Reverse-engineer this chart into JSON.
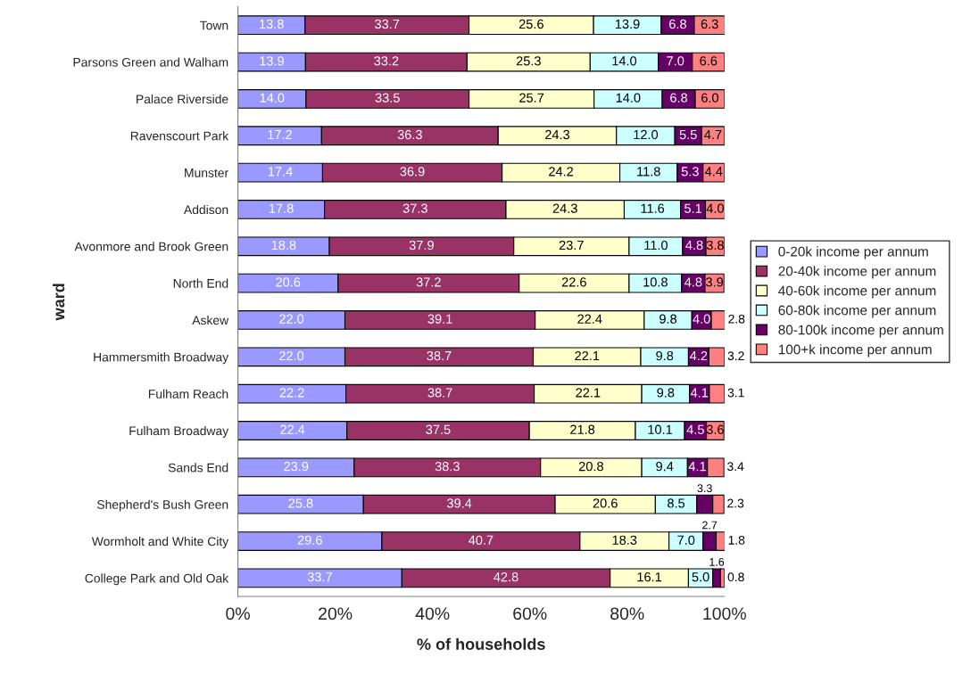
{
  "chart_data": {
    "type": "bar",
    "orientation": "horizontal",
    "stacked": true,
    "xlabel": "% of households",
    "ylabel": "ward",
    "categories": [
      "Town",
      "Parsons Green and Walham",
      "Palace Riverside",
      "Ravenscourt Park",
      "Munster",
      "Addison",
      "Avonmore and Brook Green",
      "North End",
      "Askew",
      "Hammersmith Broadway",
      "Fulham Reach",
      "Fulham Broadway",
      "Sands End",
      "Shepherd's Bush Green",
      "Wormholt and White City",
      "College Park and Old Oak"
    ],
    "series": [
      {
        "name": "0-20k income per annum",
        "color": "#9999ff",
        "values": [
          13.8,
          13.9,
          14.0,
          17.2,
          17.4,
          17.8,
          18.8,
          20.6,
          22.0,
          22.0,
          22.2,
          22.4,
          23.9,
          25.8,
          29.6,
          33.7
        ],
        "value_labels": [
          "13.8",
          "13.9",
          "14.0",
          "17.2",
          "17.4",
          "17.8",
          "18.8",
          "20.6",
          "22.0",
          "22.0",
          "22.2",
          "22.4",
          "23.9",
          "25.8",
          "29.6",
          "33.7"
        ]
      },
      {
        "name": "20-40k income per annum",
        "color": "#993366",
        "values": [
          33.7,
          33.2,
          33.5,
          36.3,
          36.9,
          37.3,
          37.9,
          37.2,
          39.1,
          38.7,
          38.7,
          37.5,
          38.3,
          39.4,
          40.7,
          42.8
        ],
        "value_labels": [
          "33.7",
          "33.2",
          "33.5",
          "36.3",
          "36.9",
          "37.3",
          "37.9",
          "37.2",
          "39.1",
          "38.7",
          "38.7",
          "37.5",
          "38.3",
          "39.4",
          "40.7",
          "42.8"
        ]
      },
      {
        "name": "40-60k income per annum",
        "color": "#ffffcc",
        "values": [
          25.6,
          25.3,
          25.7,
          24.3,
          24.2,
          24.3,
          23.7,
          22.6,
          22.4,
          22.1,
          22.1,
          21.8,
          20.8,
          20.6,
          18.3,
          16.1
        ],
        "value_labels": [
          "25.6",
          "25.3",
          "25.7",
          "24.3",
          "24.2",
          "24.3",
          "23.7",
          "22.6",
          "22.4",
          "22.1",
          "22.1",
          "21.8",
          "20.8",
          "20.6",
          "18.3",
          "16.1"
        ]
      },
      {
        "name": "60-80k income per annum",
        "color": "#ccffff",
        "values": [
          13.9,
          14.0,
          14.0,
          12.0,
          11.8,
          11.6,
          11.0,
          10.8,
          9.8,
          9.8,
          9.8,
          10.1,
          9.4,
          8.5,
          7.0,
          5.0
        ],
        "value_labels": [
          "13.9",
          "14.0",
          "14.0",
          "12.0",
          "11.8",
          "11.6",
          "11.0",
          "10.8",
          "9.8",
          "9.8",
          "9.8",
          "10.1",
          "9.4",
          "8.5",
          "7.0",
          "5.0"
        ]
      },
      {
        "name": "80-100k income per annum",
        "color": "#660066",
        "values": [
          6.8,
          7.0,
          6.8,
          5.5,
          5.3,
          5.1,
          4.8,
          4.8,
          4.0,
          4.2,
          4.1,
          4.5,
          4.1,
          3.3,
          2.7,
          1.6
        ],
        "value_labels": [
          "6.8",
          "7.0",
          "6.8",
          "5.5",
          "5.3",
          "5.1",
          "4.8",
          "4.8",
          "4.0",
          "4.2",
          "4.1",
          "4.5",
          "4.1",
          "3.3",
          "2.7",
          "1.6"
        ]
      },
      {
        "name": "100+k income per annum",
        "color": "#ff8080",
        "values": [
          6.3,
          6.6,
          6.0,
          4.7,
          4.4,
          4.0,
          3.8,
          3.9,
          2.8,
          3.2,
          3.1,
          3.6,
          3.4,
          2.3,
          1.8,
          0.8
        ],
        "value_labels": [
          "6.3",
          "6.6",
          "6.0",
          "4.7",
          "4.4",
          "4.0",
          "3.8",
          "3.9",
          "2.8",
          "3.2",
          "3.1",
          "3.6",
          "3.4",
          "2.3",
          "1.8",
          "0.8"
        ]
      }
    ],
    "xlim": [
      0,
      100
    ],
    "xticks": [
      {
        "value": 0,
        "label": "0%"
      },
      {
        "value": 20,
        "label": "20%"
      },
      {
        "value": 40,
        "label": "40%"
      },
      {
        "value": 60,
        "label": "60%"
      },
      {
        "value": 80,
        "label": "80%"
      },
      {
        "value": 100,
        "label": "100%"
      }
    ],
    "legend": "right",
    "grid": false
  }
}
